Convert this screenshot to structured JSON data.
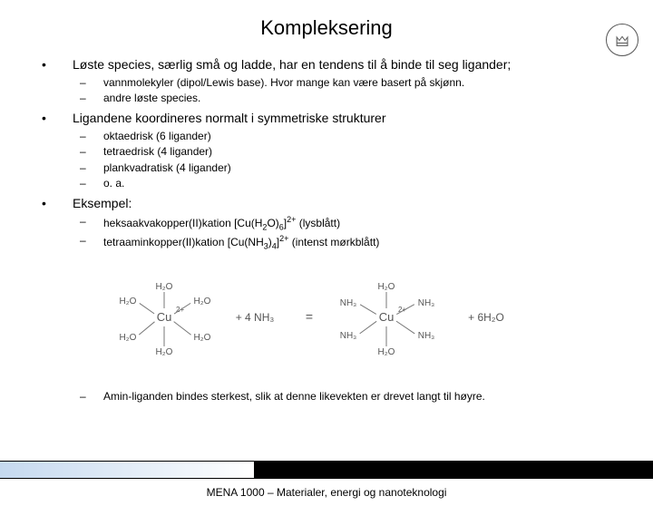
{
  "title": "Kompleksering",
  "b1": "Løste species, særlig små og ladde, har en tendens til å binde til seg ligander;",
  "b1s1": "vannmolekyler (dipol/Lewis base). Hvor mange kan være basert på skjønn.",
  "b1s2": "andre løste species.",
  "b2": "Ligandene koordineres normalt i symmetriske strukturer",
  "b2s1": "oktaedrisk (6 ligander)",
  "b2s2": "tetraedrisk (4 ligander)",
  "b2s3": "plankvadratisk (4 ligander)",
  "b2s4": "o. a.",
  "b3": "Eksempel:",
  "b3s1a": "heksaakvakopper(II)kation [Cu(H",
  "b3s1b": "O)",
  "b3s1c": "]",
  "b3s1d": " (lysblått)",
  "b3s2a": "tetraaminkopper(II)kation [Cu(NH",
  "b3s2b": ")",
  "b3s2c": "]",
  "b3s2d": " (intenst mørkblått)",
  "note": "Amin-liganden bindes sterkest, slik at denne likevekten er drevet langt til høyre.",
  "footer": "MENA 1000 – Materialer, energi og nanoteknologi",
  "diagram": {
    "cu": "Cu",
    "cu_charge": "2+",
    "h2o": "H₂O",
    "nh3": "NH₃",
    "plus4nh3": "+  4 NH₃",
    "eq": "=",
    "plus6h2o": "+   6H₂O",
    "stroke": "#777777",
    "text": "#555555"
  }
}
